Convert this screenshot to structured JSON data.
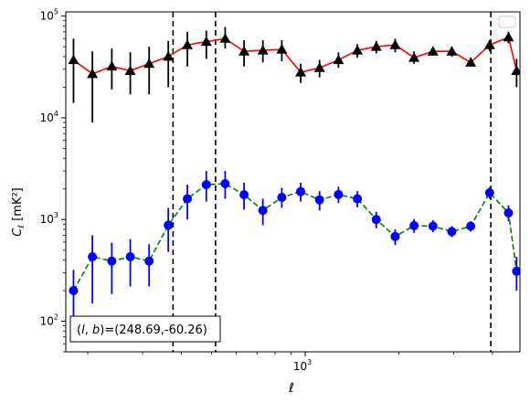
{
  "chart_data": {
    "type": "scatter",
    "xscale": "log",
    "yscale": "log",
    "xlim": [
      170,
      4900
    ],
    "ylim": [
      50,
      110000
    ],
    "xlabel": "ℓ",
    "ylabel": "C",
    "ylabel_sub": "ℓ",
    "ylabel_unit": "[mK²]",
    "x_tick_labels": [
      {
        "value": 1000,
        "base": "10",
        "exp": "3"
      }
    ],
    "y_tick_labels": [
      {
        "value": 100,
        "base": "10",
        "exp": "2"
      },
      {
        "value": 1000,
        "base": "10",
        "exp": "3"
      },
      {
        "value": 10000,
        "base": "10",
        "exp": "4"
      },
      {
        "value": 100000,
        "base": "10",
        "exp": "5"
      }
    ],
    "annotation": "(l, b)=(248.69,-60.26)",
    "annotation_l": "l",
    "annotation_b": "b",
    "annotation_values": "=(248.69,-60.26)",
    "legend": {
      "placement": "top-right",
      "entries": []
    },
    "vlines": [
      376,
      515,
      3950
    ],
    "series": [
      {
        "marker": "triangle",
        "line_style": "solid",
        "line_color": "#ff0000",
        "marker_color": "#000000",
        "points": [
          {
            "x": 180,
            "y": 37000,
            "lo": 14000,
            "hi": 60000
          },
          {
            "x": 207,
            "y": 27000,
            "lo": 9000,
            "hi": 45000
          },
          {
            "x": 239,
            "y": 32000,
            "lo": 19000,
            "hi": 48000
          },
          {
            "x": 274,
            "y": 29000,
            "lo": 17000,
            "hi": 44000
          },
          {
            "x": 315,
            "y": 34000,
            "lo": 17000,
            "hi": 50000
          },
          {
            "x": 363,
            "y": 40000,
            "lo": 20000,
            "hi": 57000
          },
          {
            "x": 418,
            "y": 52000,
            "lo": 32000,
            "hi": 70000
          },
          {
            "x": 481,
            "y": 56000,
            "lo": 38000,
            "hi": 72000
          },
          {
            "x": 553,
            "y": 60000,
            "lo": 48000,
            "hi": 78000
          },
          {
            "x": 636,
            "y": 45000,
            "lo": 32000,
            "hi": 58000
          },
          {
            "x": 731,
            "y": 46000,
            "lo": 35000,
            "hi": 58000
          },
          {
            "x": 841,
            "y": 47000,
            "lo": 36000,
            "hi": 58000
          },
          {
            "x": 967,
            "y": 28000,
            "lo": 22000,
            "hi": 34000
          },
          {
            "x": 1112,
            "y": 31000,
            "lo": 25000,
            "hi": 37000
          },
          {
            "x": 1279,
            "y": 37000,
            "lo": 31000,
            "hi": 44000
          },
          {
            "x": 1471,
            "y": 46000,
            "lo": 39000,
            "hi": 53000
          },
          {
            "x": 1692,
            "y": 50000,
            "lo": 43000,
            "hi": 57000
          },
          {
            "x": 1946,
            "y": 52000,
            "lo": 44000,
            "hi": 60000
          },
          {
            "x": 2238,
            "y": 39000,
            "lo": 34000,
            "hi": 45000
          },
          {
            "x": 2574,
            "y": 45000,
            "lo": 41000,
            "hi": 49000
          },
          {
            "x": 2960,
            "y": 45000,
            "lo": 40000,
            "hi": 50000
          },
          {
            "x": 3404,
            "y": 35000,
            "lo": 32000,
            "hi": 39000
          },
          {
            "x": 3915,
            "y": 52000,
            "lo": 45000,
            "hi": 58000
          },
          {
            "x": 4502,
            "y": 62000,
            "lo": 54000,
            "hi": 70000
          },
          {
            "x": 4780,
            "y": 29000,
            "lo": 20000,
            "hi": 38000
          }
        ]
      },
      {
        "marker": "circle",
        "line_style": "dashed",
        "line_color": "#008000",
        "marker_color": "#0000ff",
        "points": [
          {
            "x": 180,
            "y": 200,
            "lo": 90,
            "hi": 320
          },
          {
            "x": 207,
            "y": 430,
            "lo": 150,
            "hi": 700
          },
          {
            "x": 239,
            "y": 390,
            "lo": 185,
            "hi": 590
          },
          {
            "x": 274,
            "y": 430,
            "lo": 220,
            "hi": 640
          },
          {
            "x": 315,
            "y": 390,
            "lo": 220,
            "hi": 570
          },
          {
            "x": 363,
            "y": 880,
            "lo": 480,
            "hi": 1300
          },
          {
            "x": 418,
            "y": 1600,
            "lo": 1000,
            "hi": 2200
          },
          {
            "x": 481,
            "y": 2200,
            "lo": 1500,
            "hi": 3000
          },
          {
            "x": 553,
            "y": 2250,
            "lo": 1600,
            "hi": 3000
          },
          {
            "x": 636,
            "y": 1750,
            "lo": 1250,
            "hi": 2300
          },
          {
            "x": 731,
            "y": 1230,
            "lo": 880,
            "hi": 1600
          },
          {
            "x": 841,
            "y": 1650,
            "lo": 1300,
            "hi": 2050
          },
          {
            "x": 967,
            "y": 1880,
            "lo": 1500,
            "hi": 2300
          },
          {
            "x": 1112,
            "y": 1560,
            "lo": 1230,
            "hi": 1900
          },
          {
            "x": 1279,
            "y": 1760,
            "lo": 1450,
            "hi": 2100
          },
          {
            "x": 1471,
            "y": 1600,
            "lo": 1320,
            "hi": 1900
          },
          {
            "x": 1692,
            "y": 1000,
            "lo": 820,
            "hi": 1190
          },
          {
            "x": 1946,
            "y": 680,
            "lo": 560,
            "hi": 800
          },
          {
            "x": 2238,
            "y": 870,
            "lo": 740,
            "hi": 1010
          },
          {
            "x": 2574,
            "y": 860,
            "lo": 750,
            "hi": 980
          },
          {
            "x": 2960,
            "y": 760,
            "lo": 670,
            "hi": 860
          },
          {
            "x": 3404,
            "y": 860,
            "lo": 760,
            "hi": 960
          },
          {
            "x": 3915,
            "y": 1830,
            "lo": 1600,
            "hi": 2080
          },
          {
            "x": 4502,
            "y": 1160,
            "lo": 960,
            "hi": 1380
          },
          {
            "x": 4780,
            "y": 310,
            "lo": 200,
            "hi": 430
          }
        ]
      }
    ]
  }
}
